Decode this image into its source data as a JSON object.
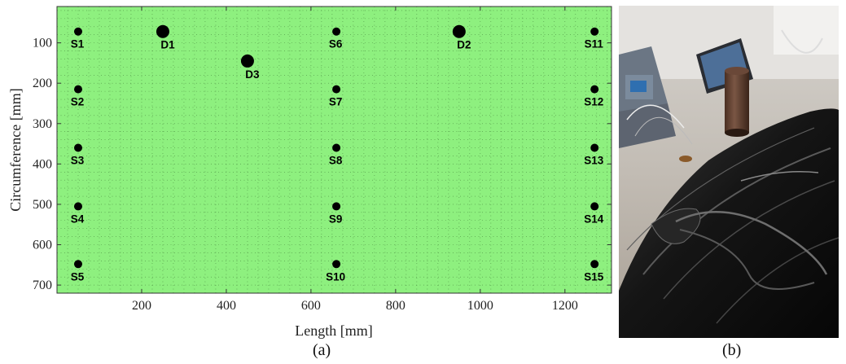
{
  "chart_data": {
    "type": "scatter",
    "title": "",
    "xlabel": "Length [mm]",
    "ylabel": "Circumference [mm]",
    "xlim": [
      0,
      1310
    ],
    "ylim": [
      720,
      10
    ],
    "y_axis_inverted": true,
    "x_ticks": [
      200,
      400,
      600,
      800,
      1000,
      1200
    ],
    "y_ticks": [
      100,
      200,
      300,
      400,
      500,
      600,
      700
    ],
    "grid": "dotted",
    "background_color": "#8ef07f",
    "marker_color": "#000000",
    "series": [
      {
        "kind": "sensor",
        "points": [
          {
            "label": "S1",
            "x": 50,
            "y": 72
          },
          {
            "label": "S2",
            "x": 50,
            "y": 215
          },
          {
            "label": "S3",
            "x": 50,
            "y": 360
          },
          {
            "label": "S4",
            "x": 50,
            "y": 505
          },
          {
            "label": "S5",
            "x": 50,
            "y": 648
          },
          {
            "label": "S6",
            "x": 660,
            "y": 72
          },
          {
            "label": "S7",
            "x": 660,
            "y": 215
          },
          {
            "label": "S8",
            "x": 660,
            "y": 360
          },
          {
            "label": "S9",
            "x": 660,
            "y": 505
          },
          {
            "label": "S10",
            "x": 660,
            "y": 648
          },
          {
            "label": "S11",
            "x": 1270,
            "y": 72
          },
          {
            "label": "S12",
            "x": 1270,
            "y": 215
          },
          {
            "label": "S13",
            "x": 1270,
            "y": 360
          },
          {
            "label": "S14",
            "x": 1270,
            "y": 505
          },
          {
            "label": "S15",
            "x": 1270,
            "y": 648
          }
        ]
      },
      {
        "kind": "damage",
        "points": [
          {
            "label": "D1",
            "x": 250,
            "y": 72
          },
          {
            "label": "D2",
            "x": 950,
            "y": 72
          },
          {
            "label": "D3",
            "x": 450,
            "y": 145
          }
        ]
      }
    ]
  },
  "captions": {
    "a": "(a)",
    "b": "(b)"
  },
  "photo": {
    "description_icon": "photo-icon"
  }
}
